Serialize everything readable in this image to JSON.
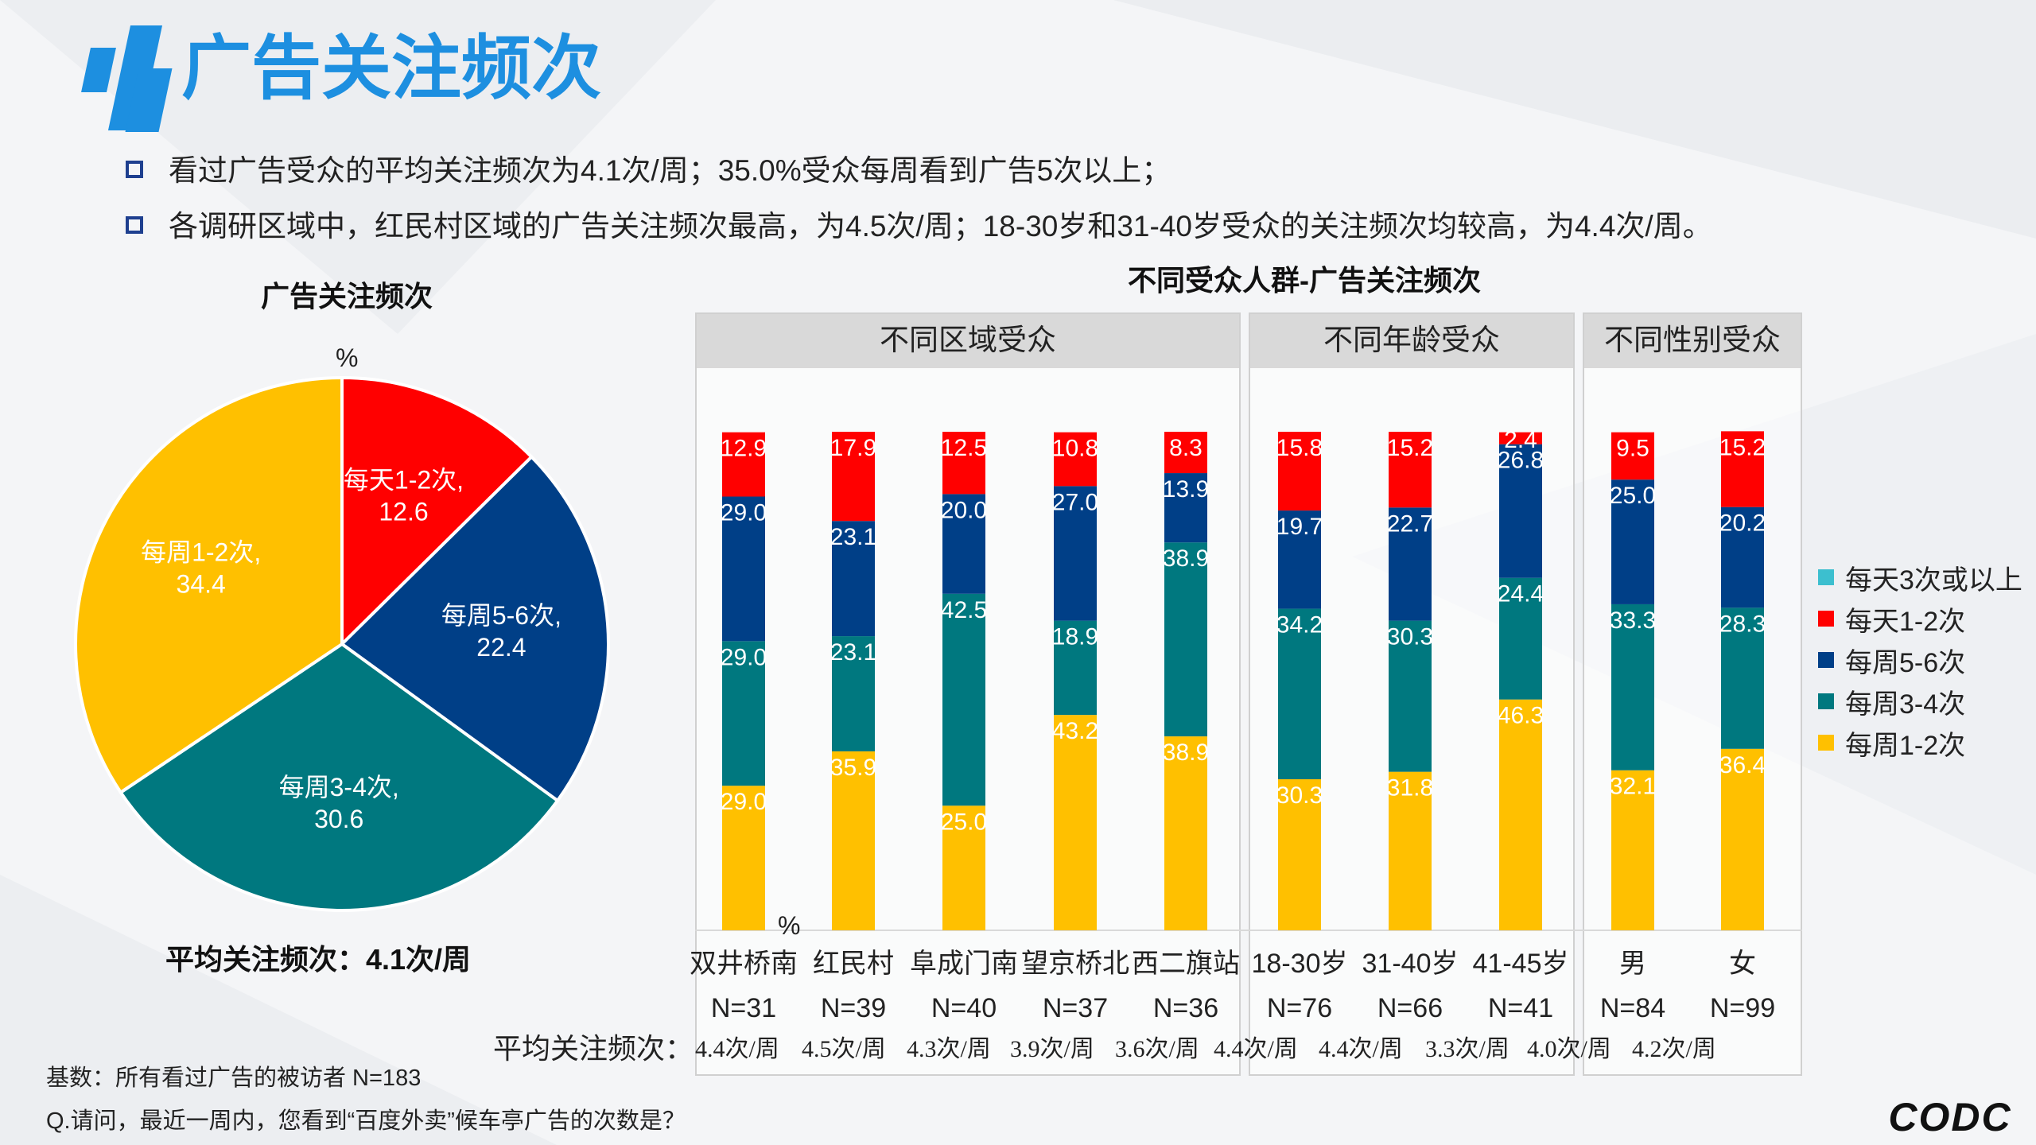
{
  "title": "广告关注频次",
  "bullets": [
    "看过广告受众的平均关注频次为4.1次/周；35.0%受众每周看到广告5次以上；",
    "各调研区域中，红民村区域的广告关注频次最高，为4.5次/周；18-30岁和31-40岁受众的关注频次均较高，为4.4次/周。"
  ],
  "colors": {
    "daily3": "#3cbfcf",
    "daily12": "#ff0000",
    "weekly56": "#003f87",
    "weekly34": "#00787f",
    "weekly12": "#ffc000",
    "accent": "#1d8fe0"
  },
  "chart_data": [
    {
      "type": "pie",
      "title": "广告关注频次",
      "unit": "%",
      "slices": [
        {
          "label": "每天1-2次,",
          "value": 12.6,
          "color": "#ff0000"
        },
        {
          "label": "每周5-6次,",
          "value": 22.4,
          "color": "#003f87"
        },
        {
          "label": "每周3-4次,",
          "value": 30.6,
          "color": "#00787f"
        },
        {
          "label": "每周1-2次,",
          "value": 34.4,
          "color": "#ffc000"
        }
      ],
      "avg_text": "平均关注频次：4.1次/周"
    },
    {
      "type": "bar",
      "stacked": true,
      "title": "不同受众人群-广告关注频次",
      "unit": "%",
      "panels": [
        {
          "name": "不同区域受众",
          "categories": [
            "双井桥南",
            "红民村",
            "阜成门南",
            "望京桥北",
            "西二旗站"
          ]
        },
        {
          "name": "不同年龄受众",
          "categories": [
            "18-30岁",
            "31-40岁",
            "41-45岁"
          ]
        },
        {
          "name": "不同性别受众",
          "categories": [
            "男",
            "女"
          ]
        }
      ],
      "categories": [
        "双井桥南",
        "红民村",
        "阜成门南",
        "望京桥北",
        "西二旗站",
        "18-30岁",
        "31-40岁",
        "41-45岁",
        "男",
        "女"
      ],
      "n_labels": [
        "N=31",
        "N=39",
        "N=40",
        "N=37",
        "N=36",
        "N=76",
        "N=66",
        "N=41",
        "N=84",
        "N=99"
      ],
      "series": [
        {
          "name": "每周1-2次",
          "color": "#ffc000",
          "values": [
            29.0,
            35.9,
            25.0,
            43.2,
            38.9,
            30.3,
            31.8,
            46.3,
            32.1,
            36.4
          ]
        },
        {
          "name": "每周3-4次",
          "color": "#00787f",
          "values": [
            29.0,
            23.1,
            42.5,
            18.9,
            38.9,
            34.2,
            30.3,
            24.4,
            33.3,
            28.3
          ]
        },
        {
          "name": "每周5-6次",
          "color": "#003f87",
          "values": [
            29.0,
            23.1,
            20.0,
            27.0,
            13.9,
            19.7,
            22.7,
            26.8,
            25.0,
            20.2
          ]
        },
        {
          "name": "每天1-2次",
          "color": "#ff0000",
          "values": [
            12.9,
            17.9,
            12.5,
            10.8,
            8.3,
            15.8,
            15.2,
            2.4,
            9.5,
            15.2
          ]
        },
        {
          "name": "每天3次或以上",
          "color": "#3cbfcf",
          "values": [
            0,
            0,
            0,
            0,
            0,
            0,
            0,
            0,
            0,
            0
          ]
        }
      ],
      "avg_label": "平均关注频次：",
      "avg_values": [
        "4.4次/周",
        "4.5次/周",
        "4.3次/周",
        "3.9次/周",
        "3.6次/周",
        "4.4次/周",
        "4.4次/周",
        "3.3次/周",
        "4.0次/周",
        "4.2次/周"
      ],
      "legend": [
        "每天3次或以上",
        "每天1-2次",
        "每周5-6次",
        "每周3-4次",
        "每周1-2次"
      ],
      "ylim": [
        0,
        100
      ]
    }
  ],
  "footnotes": [
    "基数：所有看过广告的被访者  N=183",
    "Q.请问，最近一周内，您看到“百度外卖”候车亭广告的次数是？"
  ],
  "brand": "CODC"
}
